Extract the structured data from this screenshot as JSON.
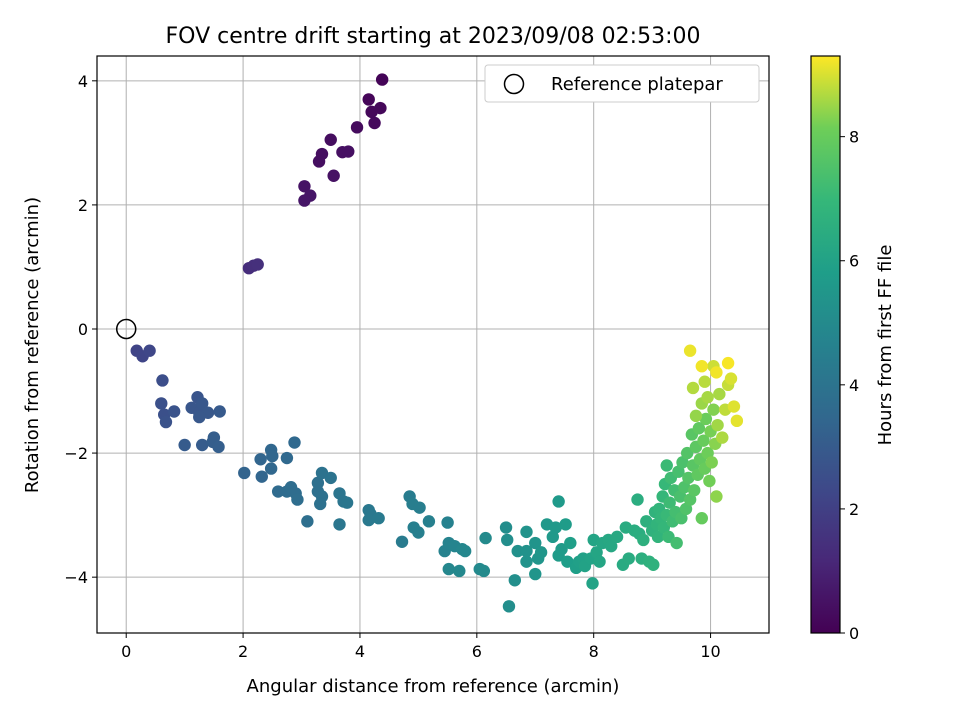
{
  "chart_data": {
    "type": "scatter",
    "title": "FOV centre drift starting at 2023/09/08 02:53:00",
    "xlabel": "Angular distance from reference (arcmin)",
    "ylabel": "Rotation from reference (arcmin)",
    "xlim": [
      -0.5,
      11.0
    ],
    "ylim": [
      -4.9,
      4.4
    ],
    "xticks": [
      0,
      2,
      4,
      6,
      8,
      10
    ],
    "yticks": [
      -4,
      -2,
      0,
      2,
      4
    ],
    "grid": true,
    "legend": {
      "placement": "top-right",
      "entries": [
        "Reference platepar"
      ]
    },
    "reference_point": {
      "x": 0,
      "y": 0,
      "label": "Reference platepar"
    },
    "colorbar": {
      "label": "Hours from first FF file",
      "range": [
        0,
        9.3
      ],
      "ticks": [
        0,
        2,
        4,
        6,
        8
      ],
      "colormap": "viridis"
    },
    "points": [
      [
        4.38,
        4.02,
        0.1
      ],
      [
        4.15,
        3.7,
        0.15
      ],
      [
        4.2,
        3.5,
        0.2
      ],
      [
        4.35,
        3.56,
        0.2
      ],
      [
        4.25,
        3.32,
        0.25
      ],
      [
        3.95,
        3.25,
        0.3
      ],
      [
        3.5,
        3.05,
        0.35
      ],
      [
        3.35,
        2.82,
        0.4
      ],
      [
        3.3,
        2.7,
        0.4
      ],
      [
        3.7,
        2.85,
        0.45
      ],
      [
        3.8,
        2.86,
        0.45
      ],
      [
        3.55,
        2.47,
        0.5
      ],
      [
        3.05,
        2.3,
        0.55
      ],
      [
        3.15,
        2.15,
        0.6
      ],
      [
        3.05,
        2.07,
        0.6
      ],
      [
        2.1,
        0.98,
        1.35
      ],
      [
        2.18,
        1.02,
        1.4
      ],
      [
        2.25,
        1.04,
        1.45
      ],
      [
        0.18,
        -0.35,
        2.15
      ],
      [
        0.28,
        -0.44,
        2.2
      ],
      [
        0.4,
        -0.35,
        2.25
      ],
      [
        0.62,
        -0.83,
        2.5
      ],
      [
        0.6,
        -1.2,
        2.6
      ],
      [
        0.65,
        -1.38,
        2.6
      ],
      [
        0.68,
        -1.5,
        2.65
      ],
      [
        0.82,
        -1.33,
        2.7
      ],
      [
        1.22,
        -1.1,
        2.75
      ],
      [
        1.12,
        -1.27,
        2.8
      ],
      [
        1.25,
        -1.35,
        2.8
      ],
      [
        1.3,
        -1.2,
        2.85
      ],
      [
        1.4,
        -1.35,
        2.9
      ],
      [
        1.25,
        -1.42,
        2.9
      ],
      [
        1.6,
        -1.33,
        2.95
      ],
      [
        1.0,
        -1.87,
        3.0
      ],
      [
        1.3,
        -1.87,
        3.05
      ],
      [
        1.5,
        -1.75,
        3.1
      ],
      [
        1.48,
        -1.82,
        3.1
      ],
      [
        1.58,
        -1.9,
        3.15
      ],
      [
        2.02,
        -2.32,
        3.35
      ],
      [
        2.3,
        -2.1,
        3.4
      ],
      [
        2.32,
        -2.38,
        3.4
      ],
      [
        2.48,
        -1.95,
        3.45
      ],
      [
        2.5,
        -2.05,
        3.45
      ],
      [
        2.48,
        -2.25,
        3.5
      ],
      [
        2.75,
        -2.08,
        3.55
      ],
      [
        2.88,
        -1.83,
        3.55
      ],
      [
        2.6,
        -2.62,
        3.6
      ],
      [
        2.75,
        -2.62,
        3.65
      ],
      [
        2.82,
        -2.55,
        3.7
      ],
      [
        2.9,
        -2.65,
        3.7
      ],
      [
        2.93,
        -2.75,
        3.75
      ],
      [
        3.1,
        -3.1,
        3.8
      ],
      [
        3.28,
        -2.48,
        3.85
      ],
      [
        3.28,
        -2.62,
        3.85
      ],
      [
        3.35,
        -2.7,
        3.9
      ],
      [
        3.32,
        -2.82,
        3.9
      ],
      [
        3.35,
        -2.32,
        3.95
      ],
      [
        3.5,
        -2.4,
        4.0
      ],
      [
        3.65,
        -2.65,
        4.05
      ],
      [
        3.72,
        -2.78,
        4.05
      ],
      [
        3.78,
        -2.8,
        4.1
      ],
      [
        3.65,
        -3.15,
        4.1
      ],
      [
        4.15,
        -2.92,
        4.2
      ],
      [
        4.18,
        -2.98,
        4.2
      ],
      [
        4.15,
        -3.08,
        4.25
      ],
      [
        4.32,
        -3.05,
        4.3
      ],
      [
        4.72,
        -3.43,
        4.35
      ],
      [
        4.85,
        -2.7,
        4.4
      ],
      [
        4.9,
        -2.82,
        4.45
      ],
      [
        5.02,
        -2.88,
        4.45
      ],
      [
        4.92,
        -3.2,
        4.5
      ],
      [
        5.0,
        -3.28,
        4.5
      ],
      [
        5.18,
        -3.1,
        4.55
      ],
      [
        5.5,
        -3.12,
        4.6
      ],
      [
        5.45,
        -3.58,
        4.65
      ],
      [
        5.52,
        -3.45,
        4.7
      ],
      [
        5.62,
        -3.5,
        4.75
      ],
      [
        5.75,
        -3.55,
        4.8
      ],
      [
        5.8,
        -3.58,
        4.85
      ],
      [
        5.52,
        -3.87,
        4.85
      ],
      [
        5.7,
        -3.9,
        4.9
      ],
      [
        6.05,
        -3.87,
        4.95
      ],
      [
        6.15,
        -3.37,
        5.0
      ],
      [
        6.12,
        -3.9,
        5.0
      ],
      [
        6.5,
        -3.2,
        5.1
      ],
      [
        6.52,
        -3.4,
        5.15
      ],
      [
        6.55,
        -4.47,
        5.15
      ],
      [
        6.65,
        -4.05,
        5.2
      ],
      [
        6.7,
        -3.58,
        5.25
      ],
      [
        6.85,
        -3.58,
        5.3
      ],
      [
        6.85,
        -3.27,
        5.35
      ],
      [
        6.85,
        -3.75,
        5.35
      ],
      [
        7.0,
        -3.45,
        5.4
      ],
      [
        7.05,
        -3.7,
        5.45
      ],
      [
        7.0,
        -3.95,
        5.45
      ],
      [
        7.1,
        -3.6,
        5.5
      ],
      [
        7.2,
        -3.15,
        5.55
      ],
      [
        7.3,
        -3.35,
        5.6
      ],
      [
        7.35,
        -3.2,
        5.6
      ],
      [
        7.4,
        -2.78,
        5.65
      ],
      [
        7.4,
        -3.65,
        5.7
      ],
      [
        7.45,
        -3.55,
        5.7
      ],
      [
        7.52,
        -3.15,
        5.75
      ],
      [
        7.55,
        -3.75,
        5.8
      ],
      [
        7.6,
        -3.45,
        5.85
      ],
      [
        7.7,
        -3.85,
        5.85
      ],
      [
        7.75,
        -3.75,
        5.9
      ],
      [
        7.82,
        -3.7,
        5.95
      ],
      [
        7.85,
        -3.82,
        6.0
      ],
      [
        7.95,
        -3.7,
        6.05
      ],
      [
        7.98,
        -4.1,
        6.05
      ],
      [
        8.0,
        -3.4,
        6.1
      ],
      [
        8.05,
        -3.6,
        6.15
      ],
      [
        8.1,
        -3.75,
        6.15
      ],
      [
        8.15,
        -3.45,
        6.2
      ],
      [
        8.25,
        -3.4,
        6.25
      ],
      [
        8.3,
        -3.5,
        6.25
      ],
      [
        8.4,
        -3.35,
        6.3
      ],
      [
        8.5,
        -3.8,
        6.35
      ],
      [
        8.55,
        -3.2,
        6.4
      ],
      [
        8.6,
        -3.7,
        6.4
      ],
      [
        8.7,
        -3.25,
        6.45
      ],
      [
        8.75,
        -2.75,
        6.5
      ],
      [
        8.78,
        -3.3,
        6.5
      ],
      [
        8.82,
        -3.7,
        6.55
      ],
      [
        8.85,
        -3.4,
        6.6
      ],
      [
        8.9,
        -3.1,
        6.6
      ],
      [
        8.95,
        -3.75,
        6.65
      ],
      [
        9.0,
        -3.25,
        6.7
      ],
      [
        9.02,
        -3.8,
        6.7
      ],
      [
        9.05,
        -2.95,
        6.75
      ],
      [
        9.08,
        -3.15,
        6.8
      ],
      [
        9.1,
        -3.35,
        6.8
      ],
      [
        9.12,
        -2.9,
        6.85
      ],
      [
        9.15,
        -3.05,
        6.9
      ],
      [
        9.18,
        -2.7,
        6.95
      ],
      [
        9.2,
        -3.2,
        6.95
      ],
      [
        9.22,
        -2.5,
        7.0
      ],
      [
        9.25,
        -3.0,
        7.05
      ],
      [
        9.25,
        -2.2,
        7.1
      ],
      [
        9.28,
        -3.35,
        7.1
      ],
      [
        9.3,
        -2.8,
        7.15
      ],
      [
        9.32,
        -2.4,
        7.2
      ],
      [
        9.35,
        -3.1,
        7.2
      ],
      [
        9.38,
        -2.6,
        7.25
      ],
      [
        9.4,
        -2.95,
        7.3
      ],
      [
        9.42,
        -3.45,
        7.3
      ],
      [
        9.45,
        -2.3,
        7.35
      ],
      [
        9.48,
        -2.7,
        7.4
      ],
      [
        9.5,
        -3.05,
        7.4
      ],
      [
        9.52,
        -2.15,
        7.45
      ],
      [
        9.55,
        -2.55,
        7.5
      ],
      [
        9.58,
        -2.9,
        7.55
      ],
      [
        9.6,
        -2.0,
        7.6
      ],
      [
        9.62,
        -2.4,
        7.6
      ],
      [
        9.65,
        -2.75,
        7.65
      ],
      [
        9.68,
        -1.7,
        7.7
      ],
      [
        9.7,
        -2.2,
        7.7
      ],
      [
        9.72,
        -2.6,
        7.75
      ],
      [
        9.75,
        -1.9,
        7.8
      ],
      [
        9.78,
        -2.35,
        7.85
      ],
      [
        9.8,
        -1.6,
        7.85
      ],
      [
        9.82,
        -2.1,
        7.9
      ],
      [
        9.85,
        -3.05,
        7.95
      ],
      [
        9.88,
        -1.8,
        8.0
      ],
      [
        9.9,
        -2.25,
        8.0
      ],
      [
        9.92,
        -1.45,
        8.05
      ],
      [
        9.95,
        -2.0,
        8.1
      ],
      [
        9.98,
        -2.45,
        8.15
      ],
      [
        10.0,
        -1.65,
        8.2
      ],
      [
        10.02,
        -2.15,
        8.25
      ],
      [
        10.05,
        -1.3,
        8.3
      ],
      [
        10.08,
        -1.85,
        8.35
      ],
      [
        10.1,
        -2.7,
        8.4
      ],
      [
        9.75,
        -1.4,
        8.45
      ],
      [
        9.85,
        -1.2,
        8.5
      ],
      [
        10.12,
        -1.55,
        8.55
      ],
      [
        10.15,
        -1.05,
        8.6
      ],
      [
        10.2,
        -1.75,
        8.65
      ],
      [
        9.7,
        -0.95,
        8.7
      ],
      [
        9.9,
        -0.85,
        8.75
      ],
      [
        10.25,
        -1.3,
        8.8
      ],
      [
        10.3,
        -0.9,
        8.85
      ],
      [
        10.05,
        -0.6,
        8.9
      ],
      [
        10.35,
        -0.8,
        9.0
      ],
      [
        10.4,
        -1.25,
        9.05
      ],
      [
        10.45,
        -1.48,
        9.1
      ],
      [
        9.65,
        -0.35,
        9.15
      ],
      [
        9.85,
        -0.6,
        9.2
      ],
      [
        10.1,
        -0.7,
        9.2
      ],
      [
        10.3,
        -0.55,
        9.25
      ],
      [
        9.95,
        -1.1,
        8.6
      ]
    ]
  }
}
